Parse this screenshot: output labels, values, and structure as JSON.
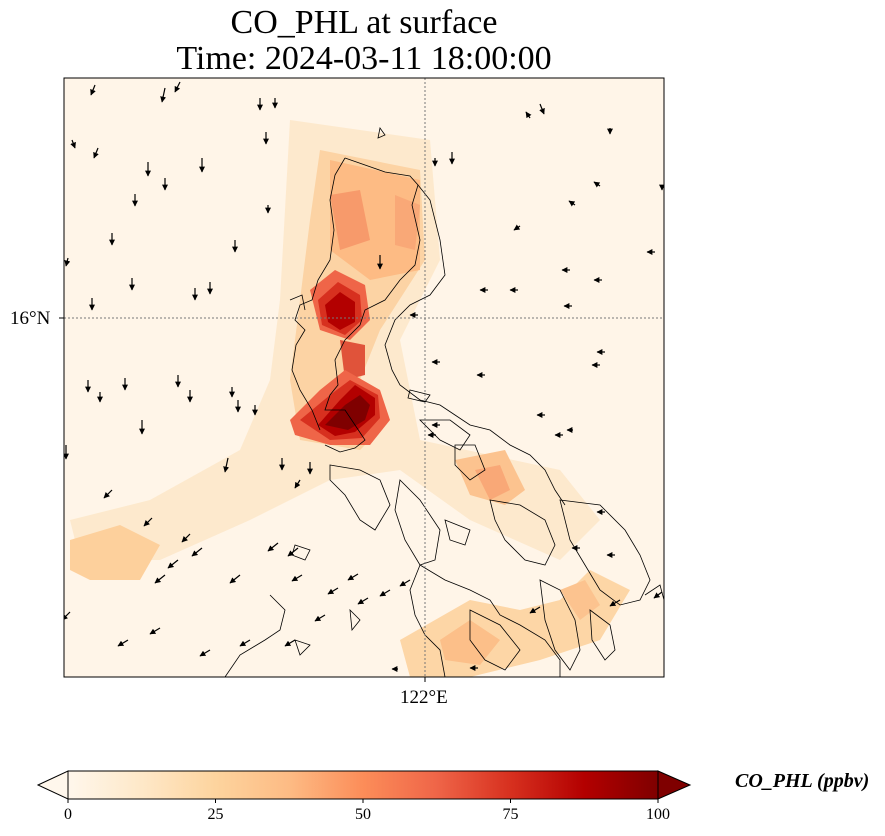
{
  "title": {
    "line1": "CO_PHL at surface",
    "line2": "Time: 2024-03-11 18:00:00"
  },
  "axes": {
    "lat_tick": "16°N",
    "lon_tick": "122°E",
    "gridlines": "dotted"
  },
  "colorbar": {
    "label": "CO_PHL (ppbv)",
    "ticks": [
      "0",
      "25",
      "50",
      "75",
      "100"
    ],
    "colormap": "OrRd",
    "colors": [
      "#fff7ec",
      "#fee8c8",
      "#fdd49e",
      "#fdbb84",
      "#fc8d59",
      "#ef6548",
      "#d7301f",
      "#b30000",
      "#7f0000"
    ],
    "extend": "both",
    "range": [
      0,
      100
    ]
  }
}
